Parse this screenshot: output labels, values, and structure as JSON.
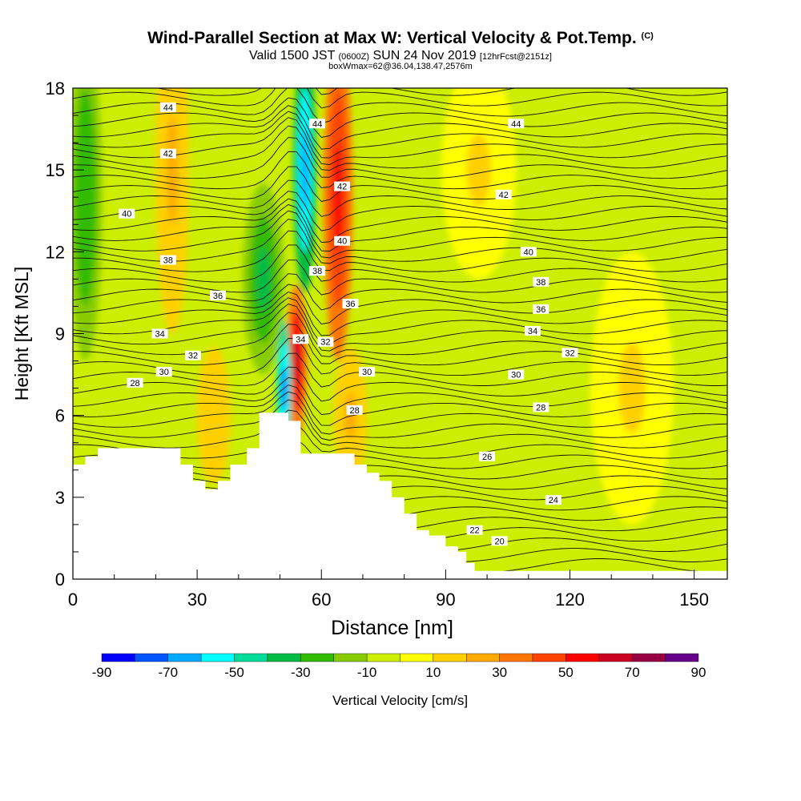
{
  "header": {
    "title": "Wind-Parallel Section at Max W: Vertical Velocity & Pot.Temp.",
    "title_mark": "(C)",
    "valid_prefix": "Valid 1500 JST",
    "valid_utc": "(0600Z)",
    "valid_date": "SUN 24 Nov 2019",
    "forecast_note": "[12hrFcst@2151z]",
    "boxwmax": "boxWmax=62@36.04,138.47,2576m"
  },
  "chart_data": {
    "type": "heatmap",
    "title": "Wind-Parallel Section at Max W: Vertical Velocity & Pot.Temp.",
    "xlabel": "Distance [nm]",
    "ylabel": "Height [Kft MSL]",
    "xlim": [
      0,
      158
    ],
    "ylim": [
      0,
      18
    ],
    "x_ticks": [
      "0",
      "30",
      "60",
      "90",
      "120",
      "150"
    ],
    "x_tick_values": [
      0,
      30,
      60,
      90,
      120,
      150
    ],
    "y_ticks": [
      "0",
      "3",
      "6",
      "9",
      "12",
      "15",
      "18"
    ],
    "y_tick_values": [
      0,
      3,
      6,
      9,
      12,
      15,
      18
    ],
    "colorbar": {
      "label": "Vertical Velocity [cm/s]",
      "tick_labels": [
        "-90",
        "-70",
        "-50",
        "-30",
        "-10",
        "10",
        "30",
        "50",
        "70",
        "90"
      ],
      "tick_values": [
        -90,
        -70,
        -50,
        -30,
        -10,
        10,
        30,
        50,
        70,
        90
      ],
      "bins": [
        -90,
        -80,
        -70,
        -60,
        -50,
        -40,
        -30,
        -20,
        -10,
        0,
        10,
        20,
        30,
        40,
        50,
        60,
        70,
        80,
        90
      ],
      "colors": [
        "#0000ff",
        "#0055ff",
        "#00aaff",
        "#00ffff",
        "#00dd99",
        "#00bb44",
        "#33bb00",
        "#88cc00",
        "#ccee00",
        "#ffff00",
        "#ffd000",
        "#ffaa00",
        "#ff7700",
        "#ff4400",
        "#ff0000",
        "#cc0022",
        "#990044",
        "#660088"
      ]
    },
    "terrain": [
      [
        0,
        4.2
      ],
      [
        3,
        4.2
      ],
      [
        3,
        4.5
      ],
      [
        6,
        4.5
      ],
      [
        6,
        4.8
      ],
      [
        26,
        4.8
      ],
      [
        26,
        4.2
      ],
      [
        29,
        4.2
      ],
      [
        29,
        3.6
      ],
      [
        32,
        3.6
      ],
      [
        32,
        3.3
      ],
      [
        35,
        3.3
      ],
      [
        35,
        3.6
      ],
      [
        38,
        3.6
      ],
      [
        38,
        4.2
      ],
      [
        42,
        4.2
      ],
      [
        42,
        4.8
      ],
      [
        45,
        4.8
      ],
      [
        45,
        6.1
      ],
      [
        52,
        6.1
      ],
      [
        52,
        5.8
      ],
      [
        55,
        5.8
      ],
      [
        55,
        4.6
      ],
      [
        68,
        4.6
      ],
      [
        68,
        4.2
      ],
      [
        71,
        4.2
      ],
      [
        71,
        3.9
      ],
      [
        74,
        3.9
      ],
      [
        74,
        3.6
      ],
      [
        77,
        3.6
      ],
      [
        77,
        3.0
      ],
      [
        80,
        3.0
      ],
      [
        80,
        2.4
      ],
      [
        83,
        2.4
      ],
      [
        83,
        1.8
      ],
      [
        86,
        1.8
      ],
      [
        86,
        1.6
      ],
      [
        90,
        1.6
      ],
      [
        90,
        1.2
      ],
      [
        93,
        1.2
      ],
      [
        93,
        1.0
      ],
      [
        95,
        1.0
      ],
      [
        95,
        0.6
      ],
      [
        97,
        0.6
      ],
      [
        97,
        0.3
      ],
      [
        158,
        0.3
      ]
    ],
    "vertical_velocity_features": [
      {
        "name": "updraft",
        "x": 64,
        "y": 14,
        "w": 3.5,
        "h": 6,
        "value": 55
      },
      {
        "name": "updraft",
        "x": 54,
        "y": 8,
        "w": 2.5,
        "h": 2.8,
        "value": 65
      },
      {
        "name": "downdraft",
        "x": 56,
        "y": 15,
        "w": 2.8,
        "h": 4.5,
        "value": -70
      },
      {
        "name": "downdraft",
        "x": 51,
        "y": 7,
        "w": 1.8,
        "h": 2.5,
        "value": -75
      },
      {
        "name": "downdraft",
        "x": 46,
        "y": 11,
        "w": 5,
        "h": 3.5,
        "value": -35
      },
      {
        "name": "updraft",
        "x": 24,
        "y": 15,
        "w": 4,
        "h": 6,
        "value": 25
      },
      {
        "name": "downdraft",
        "x": 3,
        "y": 14,
        "w": 4,
        "h": 6,
        "value": -30
      },
      {
        "name": "updraft",
        "x": 34,
        "y": 6,
        "w": 4,
        "h": 2.5,
        "value": 18
      },
      {
        "name": "updraft",
        "x": 67,
        "y": 6,
        "w": 4,
        "h": 2.5,
        "value": 25
      },
      {
        "name": "updraft",
        "x": 98,
        "y": 15,
        "w": 9,
        "h": 4,
        "value": 12
      },
      {
        "name": "updraft",
        "x": 135,
        "y": 7,
        "w": 10,
        "h": 5,
        "value": 12
      }
    ],
    "theta_labels": [
      {
        "text": "44",
        "x": 23,
        "y": 17.3
      },
      {
        "text": "44",
        "x": 59,
        "y": 16.7
      },
      {
        "text": "44",
        "x": 107,
        "y": 16.7
      },
      {
        "text": "42",
        "x": 23,
        "y": 15.6
      },
      {
        "text": "42",
        "x": 65,
        "y": 14.4
      },
      {
        "text": "42",
        "x": 104,
        "y": 14.1
      },
      {
        "text": "40",
        "x": 13,
        "y": 13.4
      },
      {
        "text": "40",
        "x": 65,
        "y": 12.4
      },
      {
        "text": "40",
        "x": 110,
        "y": 12.0
      },
      {
        "text": "38",
        "x": 23,
        "y": 11.7
      },
      {
        "text": "38",
        "x": 59,
        "y": 11.3
      },
      {
        "text": "38",
        "x": 113,
        "y": 10.9
      },
      {
        "text": "36",
        "x": 35,
        "y": 10.4
      },
      {
        "text": "36",
        "x": 67,
        "y": 10.1
      },
      {
        "text": "36",
        "x": 113,
        "y": 9.9
      },
      {
        "text": "34",
        "x": 21,
        "y": 9.0
      },
      {
        "text": "34",
        "x": 55,
        "y": 8.8
      },
      {
        "text": "34",
        "x": 111,
        "y": 9.1
      },
      {
        "text": "32",
        "x": 29,
        "y": 8.2
      },
      {
        "text": "32",
        "x": 61,
        "y": 8.7
      },
      {
        "text": "32",
        "x": 120,
        "y": 8.3
      },
      {
        "text": "30",
        "x": 22,
        "y": 7.6
      },
      {
        "text": "30",
        "x": 71,
        "y": 7.6
      },
      {
        "text": "30",
        "x": 107,
        "y": 7.5
      },
      {
        "text": "28",
        "x": 15,
        "y": 7.2
      },
      {
        "text": "28",
        "x": 68,
        "y": 6.2
      },
      {
        "text": "28",
        "x": 113,
        "y": 6.3
      },
      {
        "text": "26",
        "x": 100,
        "y": 4.5
      },
      {
        "text": "24",
        "x": 116,
        "y": 2.9
      },
      {
        "text": "22",
        "x": 97,
        "y": 1.8
      },
      {
        "text": "20",
        "x": 103,
        "y": 1.4
      }
    ]
  }
}
